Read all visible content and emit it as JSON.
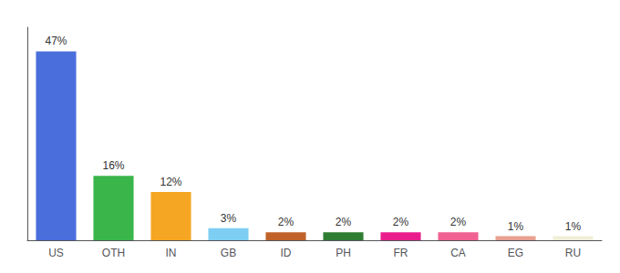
{
  "chart_data": {
    "type": "bar",
    "categories": [
      "US",
      "OTH",
      "IN",
      "GB",
      "ID",
      "PH",
      "FR",
      "CA",
      "EG",
      "RU"
    ],
    "values": [
      47,
      16,
      12,
      3,
      2,
      2,
      2,
      2,
      1,
      1
    ],
    "value_labels": [
      "47%",
      "16%",
      "12%",
      "3%",
      "2%",
      "2%",
      "2%",
      "2%",
      "1%",
      "1%"
    ],
    "data_labels": true,
    "colors": [
      "#4a6fdc",
      "#3ab54a",
      "#f5a623",
      "#7ecef4",
      "#c0622a",
      "#2e7d32",
      "#e91e8c",
      "#f06292",
      "#e8a090",
      "#f0eed8"
    ],
    "ylim": [
      0,
      53
    ],
    "tick_labels": "x",
    "grid": false
  }
}
